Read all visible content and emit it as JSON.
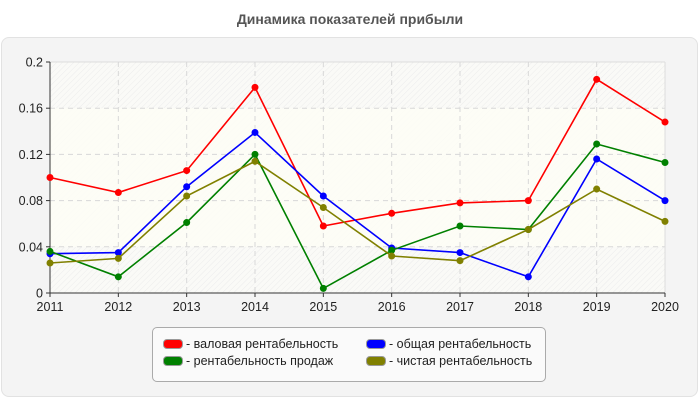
{
  "title": "Динамика показателей прибыли",
  "chart_data": {
    "type": "line",
    "title": "Динамика показателей прибыли",
    "xlabel": "",
    "ylabel": "",
    "x": [
      "2011",
      "2012",
      "2013",
      "2014",
      "2015",
      "2016",
      "2017",
      "2018",
      "2019",
      "2020"
    ],
    "ylim": [
      0,
      0.2
    ],
    "yticks": [
      "0",
      "0.04",
      "0.08",
      "0.12",
      "0.16",
      "0.2"
    ],
    "grid": true,
    "legend_position": "bottom",
    "series": [
      {
        "name": "- валовая рентабельность",
        "color": "#ff0000",
        "values": [
          0.1,
          0.087,
          0.106,
          0.178,
          0.058,
          0.069,
          0.078,
          0.08,
          0.185,
          0.148
        ]
      },
      {
        "name": "- общая рентабельность",
        "color": "#0000ff",
        "values": [
          0.034,
          0.035,
          0.092,
          0.139,
          0.084,
          0.039,
          0.035,
          0.014,
          0.116,
          0.08
        ]
      },
      {
        "name": "- рентабельность продаж",
        "color": "#008000",
        "values": [
          0.036,
          0.014,
          0.061,
          0.12,
          0.004,
          0.037,
          0.058,
          0.055,
          0.129,
          0.113
        ]
      },
      {
        "name": "- чистая рентабельность",
        "color": "#808000",
        "values": [
          0.026,
          0.03,
          0.084,
          0.114,
          0.074,
          0.032,
          0.028,
          0.055,
          0.09,
          0.062
        ]
      }
    ]
  },
  "legend": {
    "items": [
      {
        "label": "- валовая рентабельность",
        "color": "#ff0000"
      },
      {
        "label": "- общая рентабельность",
        "color": "#0000ff"
      },
      {
        "label": "- рентабельность продаж",
        "color": "#008000"
      },
      {
        "label": "- чистая рентабельность",
        "color": "#808000"
      }
    ]
  }
}
